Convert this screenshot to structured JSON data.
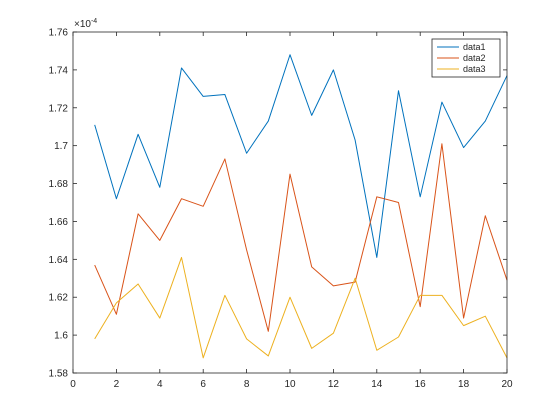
{
  "chart_data": {
    "type": "line",
    "title": "",
    "xlabel": "",
    "ylabel": "",
    "y_exponent_label": "×10",
    "y_exponent_power": "-4",
    "xlim": [
      0,
      20
    ],
    "ylim": [
      1.58,
      1.76
    ],
    "x_ticks": [
      0,
      2,
      4,
      6,
      8,
      10,
      12,
      14,
      16,
      18,
      20
    ],
    "x_tick_labels": [
      "0",
      "2",
      "4",
      "6",
      "8",
      "10",
      "12",
      "14",
      "16",
      "18",
      "20"
    ],
    "y_ticks": [
      1.58,
      1.6,
      1.62,
      1.64,
      1.66,
      1.68,
      1.7,
      1.72,
      1.74,
      1.76
    ],
    "y_tick_labels": [
      "1.58",
      "1.6",
      "1.62",
      "1.64",
      "1.66",
      "1.68",
      "1.7",
      "1.72",
      "1.74",
      "1.76"
    ],
    "grid": false,
    "legend_position": "top-right",
    "x": [
      1,
      2,
      3,
      4,
      5,
      6,
      7,
      8,
      9,
      10,
      11,
      12,
      13,
      14,
      15,
      16,
      17,
      18,
      19,
      20
    ],
    "series": [
      {
        "name": "data1",
        "color": "#0072BD",
        "values": [
          1.711,
          1.672,
          1.706,
          1.678,
          1.741,
          1.726,
          1.727,
          1.696,
          1.713,
          1.748,
          1.716,
          1.74,
          1.703,
          1.641,
          1.729,
          1.673,
          1.723,
          1.699,
          1.713,
          1.737
        ]
      },
      {
        "name": "data2",
        "color": "#D95319",
        "values": [
          1.637,
          1.611,
          1.664,
          1.65,
          1.672,
          1.668,
          1.693,
          1.645,
          1.602,
          1.685,
          1.636,
          1.626,
          1.628,
          1.673,
          1.67,
          1.615,
          1.701,
          1.609,
          1.663,
          1.629
        ]
      },
      {
        "name": "data3",
        "color": "#EDB120",
        "values": [
          1.598,
          1.617,
          1.627,
          1.609,
          1.641,
          1.588,
          1.621,
          1.598,
          1.589,
          1.62,
          1.593,
          1.601,
          1.63,
          1.592,
          1.599,
          1.621,
          1.621,
          1.605,
          1.61,
          1.588
        ]
      }
    ]
  }
}
